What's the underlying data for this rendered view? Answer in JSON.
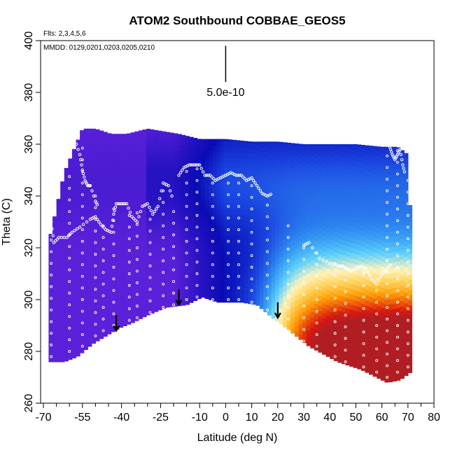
{
  "chart_data": {
    "type": "heatmap",
    "title": "ATOM2 Southbound COBBAE_GEOS5",
    "flights_label": "Flts: 2,3,4,5,6",
    "dates_label": "MMDD: 0129,0201,0203,0205,0210",
    "xlabel": "Latitude (deg N)",
    "ylabel": "Theta (C)",
    "xlim": [
      -70,
      80
    ],
    "ylim": [
      260,
      400
    ],
    "x_tick_values": [
      -70,
      -55,
      -40,
      -25,
      -10,
      0,
      10,
      20,
      30,
      40,
      50,
      60,
      70,
      80
    ],
    "x_tick_labels": [
      "-70",
      "-55",
      "-40",
      "-25",
      "-10",
      "0",
      "10",
      "20",
      "30",
      "40",
      "50",
      "60",
      "70",
      "80"
    ],
    "x_minor_ticks": [
      -65,
      -60,
      -50,
      -45,
      -35,
      -30,
      -20,
      -15,
      -5,
      5,
      15,
      25,
      35,
      45,
      55,
      65,
      75
    ],
    "y_tick_values": [
      260,
      280,
      300,
      320,
      340,
      360,
      380,
      400
    ],
    "y_tick_labels": [
      "260",
      "280",
      "300",
      "320",
      "340",
      "360",
      "380",
      "400"
    ],
    "scale_bar": {
      "label": "5.0e-10",
      "x": 0,
      "y_top": 398,
      "y_bottom": 384
    },
    "grid": false,
    "domain_top": [
      [
        -68,
        322
      ],
      [
        -62,
        349
      ],
      [
        -55,
        366
      ],
      [
        -50,
        366
      ],
      [
        -44,
        364
      ],
      [
        -38,
        364
      ],
      [
        -30,
        366
      ],
      [
        -24,
        365
      ],
      [
        -18,
        364
      ],
      [
        -10,
        362
      ],
      [
        0,
        362
      ],
      [
        10,
        361
      ],
      [
        20,
        361
      ],
      [
        30,
        360
      ],
      [
        40,
        360
      ],
      [
        50,
        360
      ],
      [
        60,
        359
      ],
      [
        66,
        359
      ],
      [
        70,
        356
      ],
      [
        71,
        330
      ],
      [
        71,
        290
      ],
      [
        71,
        278
      ],
      [
        71,
        272
      ]
    ],
    "domain_bottom": [
      [
        -68,
        276
      ],
      [
        -62,
        276
      ],
      [
        -57,
        278
      ],
      [
        -51,
        283
      ],
      [
        -46,
        286
      ],
      [
        -41,
        289
      ],
      [
        -36,
        291
      ],
      [
        -30,
        294
      ],
      [
        -23,
        297
      ],
      [
        -15,
        298
      ],
      [
        -9,
        301
      ],
      [
        -3,
        299
      ],
      [
        6,
        299
      ],
      [
        12,
        298
      ],
      [
        18,
        293
      ],
      [
        22,
        290
      ],
      [
        32,
        282
      ],
      [
        43,
        276
      ],
      [
        52,
        273
      ],
      [
        58,
        270
      ],
      [
        62,
        268
      ],
      [
        67,
        269
      ],
      [
        71,
        272
      ]
    ],
    "field_value_range": [
      0,
      1
    ],
    "field_description": "tracer concentration shaded low (violet/blue) to high (yellow/red); highest values at 20-70 N below theta 300",
    "arrow_markers": [
      {
        "lat": -42,
        "theta": 288
      },
      {
        "lat": -18,
        "theta": 298
      },
      {
        "lat": 20,
        "theta": 293
      }
    ],
    "flight_tracks": [
      {
        "name": "flight-2",
        "points": [
          [
            -67,
            330
          ],
          [
            -66,
            322
          ],
          [
            -64,
            324
          ],
          [
            -61,
            324
          ],
          [
            -59,
            326
          ],
          [
            -56,
            328
          ],
          [
            -52,
            331
          ],
          [
            -50,
            332
          ],
          [
            -48,
            329
          ],
          [
            -46,
            327
          ],
          [
            -44,
            326
          ],
          [
            -43,
            333
          ],
          [
            -42,
            337
          ],
          [
            -40,
            337
          ],
          [
            -38,
            337
          ],
          [
            -36,
            332
          ],
          [
            -34,
            330
          ],
          [
            -32,
            336
          ],
          [
            -30,
            337
          ],
          [
            -28,
            333
          ],
          [
            -26,
            336
          ],
          [
            -24,
            345
          ],
          [
            -22,
            344
          ],
          [
            -20,
            338
          ]
        ]
      },
      {
        "name": "flight-3",
        "points": [
          [
            -58,
            362
          ],
          [
            -56,
            356
          ],
          [
            -55,
            350
          ],
          [
            -54,
            346
          ],
          [
            -53,
            344
          ],
          [
            -52,
            344
          ],
          [
            -50,
            338
          ],
          [
            -49,
            336
          ]
        ]
      },
      {
        "name": "flight-4",
        "points": [
          [
            -18,
            348
          ],
          [
            -16,
            351
          ],
          [
            -14,
            352
          ],
          [
            -12,
            352
          ],
          [
            -10,
            352
          ],
          [
            -8,
            348
          ],
          [
            -6,
            348
          ],
          [
            -4,
            346
          ],
          [
            -2,
            347
          ],
          [
            0,
            348
          ],
          [
            2,
            349
          ],
          [
            4,
            348
          ],
          [
            6,
            348
          ],
          [
            8,
            346
          ],
          [
            10,
            347
          ],
          [
            12,
            344
          ],
          [
            14,
            341
          ],
          [
            16,
            340
          ],
          [
            18,
            341
          ]
        ]
      },
      {
        "name": "flight-5",
        "points": [
          [
            30,
            321
          ],
          [
            32,
            322
          ],
          [
            36,
            316
          ],
          [
            40,
            314
          ],
          [
            43,
            313
          ],
          [
            45,
            313
          ],
          [
            48,
            311
          ],
          [
            50,
            312
          ],
          [
            52,
            313
          ],
          [
            54,
            312
          ],
          [
            56,
            308
          ],
          [
            58,
            306
          ],
          [
            60,
            310
          ],
          [
            62,
            312
          ],
          [
            64,
            314
          ]
        ]
      },
      {
        "name": "flight-6",
        "points": [
          [
            63,
            359
          ],
          [
            64,
            356
          ],
          [
            65,
            354
          ],
          [
            66,
            356
          ],
          [
            67,
            358
          ],
          [
            68,
            352
          ],
          [
            69,
            348
          ]
        ]
      }
    ],
    "profile_columns": [
      {
        "lat": -67,
        "theta_min": 278,
        "theta_max": 332
      },
      {
        "lat": -60,
        "theta_min": 280,
        "theta_max": 350
      },
      {
        "lat": -55,
        "theta_min": 282,
        "theta_max": 362
      },
      {
        "lat": -50,
        "theta_min": 286,
        "theta_max": 344
      },
      {
        "lat": -47,
        "theta_min": 288,
        "theta_max": 330
      },
      {
        "lat": -43,
        "theta_min": 290,
        "theta_max": 336
      },
      {
        "lat": -37,
        "theta_min": 292,
        "theta_max": 335
      },
      {
        "lat": -34,
        "theta_min": 293,
        "theta_max": 334
      },
      {
        "lat": -29,
        "theta_min": 295,
        "theta_max": 335
      },
      {
        "lat": -24,
        "theta_min": 297,
        "theta_max": 345
      },
      {
        "lat": -20,
        "theta_min": 298,
        "theta_max": 338
      },
      {
        "lat": -15,
        "theta_min": 300,
        "theta_max": 350
      },
      {
        "lat": -11,
        "theta_min": 301,
        "theta_max": 352
      },
      {
        "lat": -5,
        "theta_min": 300,
        "theta_max": 346
      },
      {
        "lat": 1,
        "theta_min": 300,
        "theta_max": 348
      },
      {
        "lat": 5,
        "theta_min": 300,
        "theta_max": 348
      },
      {
        "lat": 10,
        "theta_min": 299,
        "theta_max": 347
      },
      {
        "lat": 16,
        "theta_min": 296,
        "theta_max": 340
      },
      {
        "lat": 24,
        "theta_min": 288,
        "theta_max": 332
      },
      {
        "lat": 30,
        "theta_min": 284,
        "theta_max": 321
      },
      {
        "lat": 35,
        "theta_min": 282,
        "theta_max": 318
      },
      {
        "lat": 42,
        "theta_min": 278,
        "theta_max": 314
      },
      {
        "lat": 46,
        "theta_min": 276,
        "theta_max": 313
      },
      {
        "lat": 53,
        "theta_min": 274,
        "theta_max": 313
      },
      {
        "lat": 58,
        "theta_min": 272,
        "theta_max": 312
      },
      {
        "lat": 62,
        "theta_min": 270,
        "theta_max": 356
      },
      {
        "lat": 66,
        "theta_min": 272,
        "theta_max": 358
      },
      {
        "lat": 70,
        "theta_min": 274,
        "theta_max": 348
      }
    ]
  },
  "colors": {
    "background": "#ffffff",
    "axis": "#000000",
    "track": "#ffffff",
    "arrow": "#000000",
    "colormap": [
      "#7b24ef",
      "#5a20d8",
      "#2a13c4",
      "#0a0bb4",
      "#1a44e0",
      "#2f8ef2",
      "#5cd0fb",
      "#fff4be",
      "#ffcf55",
      "#ffa108",
      "#f05a08",
      "#d81810",
      "#b01e23"
    ]
  }
}
